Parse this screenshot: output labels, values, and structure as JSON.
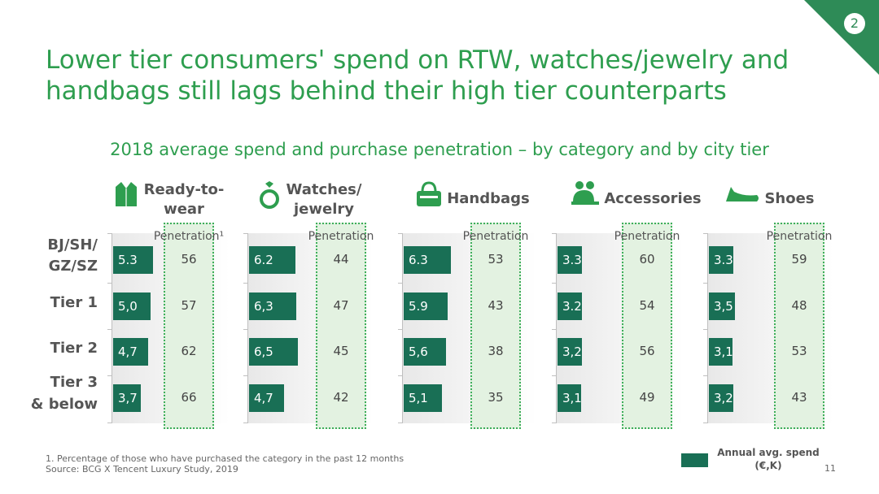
{
  "slide_number": "2",
  "title": "Lower tier consumers' spend on RTW, watches/jewelry and handbags still lags behind their high tier counterparts",
  "subtitle": "2018 average spend and purchase penetration – by category and by city tier",
  "colors": {
    "bar": "#196f55",
    "accent": "#2e8b57",
    "penetration_box": "#e3f2e1"
  },
  "chart_data": {
    "type": "bar",
    "title": "2018 average spend and purchase penetration – by category and by city tier",
    "categories": [
      "BJ/SH/ GZ/SZ",
      "Tier 1",
      "Tier 2",
      "Tier 3 & below"
    ],
    "groups": [
      {
        "name": "Ready-to- wear",
        "icon": "jacket-icon",
        "penetration_header": "Penetration¹",
        "spend_labels": [
          "5.3",
          "5,0",
          "4,7",
          "3,7"
        ],
        "spend": [
          5.3,
          5.0,
          4.7,
          3.7
        ],
        "penetration": [
          56,
          57,
          62,
          66
        ]
      },
      {
        "name": "Watches/ jewelry",
        "icon": "ring-icon",
        "penetration_header": "Penetration",
        "spend_labels": [
          "6.2",
          "6,3",
          "6,5",
          "4,7"
        ],
        "spend": [
          6.2,
          6.3,
          6.5,
          4.7
        ],
        "penetration": [
          44,
          47,
          45,
          42
        ]
      },
      {
        "name": "Handbags",
        "icon": "handbag-icon",
        "penetration_header": "Penetration",
        "spend_labels": [
          "6.3",
          "5.9",
          "5,6",
          "5,1"
        ],
        "spend": [
          6.3,
          5.9,
          5.6,
          5.1
        ],
        "penetration": [
          53,
          43,
          38,
          35
        ]
      },
      {
        "name": "Accessories",
        "icon": "accessories-icon",
        "penetration_header": "Penetration",
        "spend_labels": [
          "3.3",
          "3.2",
          "3,2",
          "3,1"
        ],
        "spend": [
          3.3,
          3.2,
          3.2,
          3.1
        ],
        "penetration": [
          60,
          54,
          56,
          49
        ]
      },
      {
        "name": "Shoes",
        "icon": "shoe-icon",
        "penetration_header": "Penetration",
        "spend_labels": [
          "3.3",
          "3,5",
          "3,1",
          "3,2"
        ],
        "spend": [
          3.3,
          3.5,
          3.1,
          3.2
        ],
        "penetration": [
          59,
          48,
          53,
          43
        ]
      }
    ],
    "legend": {
      "label": "Annual avg. spend (€,K)",
      "placement": "bottom-right"
    }
  },
  "footnote": "1. Percentage of those who have purchased the category in the past 12 months",
  "source": "Source: BCG X Tencent Luxury Study, 2019",
  "legend_line1": "Annual avg. spend",
  "legend_line2": "(€,K)",
  "page_number": "11"
}
